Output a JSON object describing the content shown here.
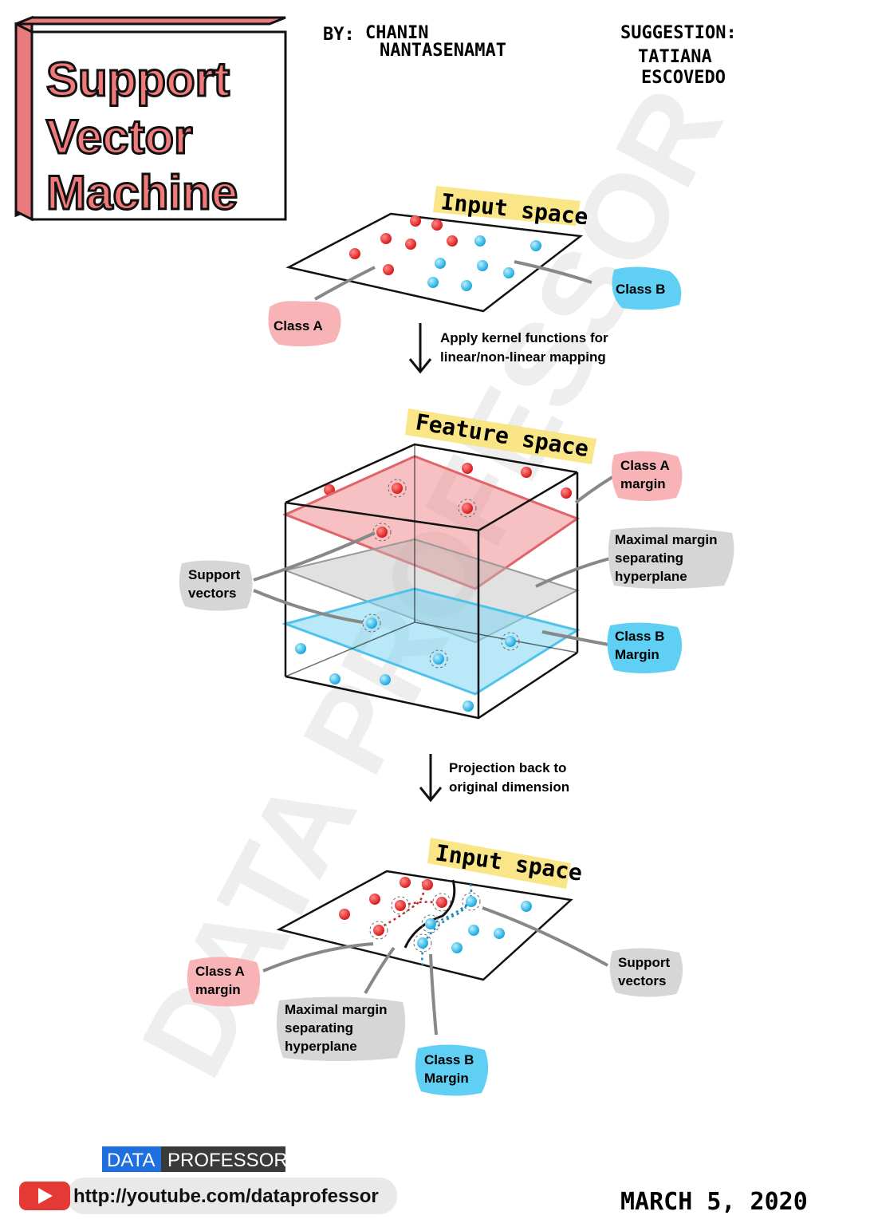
{
  "title": {
    "line1": "Support",
    "line2": "Vector",
    "line3": "Machine"
  },
  "byline": {
    "prefix": "BY:",
    "name1": "CHANIN",
    "name2": "NANTASENAMAT"
  },
  "suggestion": {
    "label": "SUGGESTION:",
    "name1": "TATIANA",
    "name2": "ESCOVEDO"
  },
  "panel1": {
    "title": "Input space",
    "class_a": "Class A",
    "class_b": "Class B"
  },
  "arrow1": {
    "line1": "Apply kernel functions for",
    "line2": "linear/non-linear mapping"
  },
  "panel2": {
    "title": "Feature space",
    "class_a_margin": [
      "Class A",
      "margin"
    ],
    "hyperplane": [
      "Maximal margin",
      "separating",
      "hyperplane"
    ],
    "support_vectors": [
      "Support",
      "vectors"
    ],
    "class_b_margin": [
      "Class B",
      "Margin"
    ]
  },
  "arrow2": {
    "line1": "Projection back to",
    "line2": "original dimension"
  },
  "panel3": {
    "title": "Input space",
    "class_a_margin": [
      "Class A",
      "margin"
    ],
    "hyperplane": [
      "Maximal margin",
      "separating",
      "hyperplane"
    ],
    "class_b_margin": [
      "Class B",
      "Margin"
    ],
    "support_vectors": [
      "Support",
      "vectors"
    ]
  },
  "watermark": "DATA PROFESSOR",
  "footer": {
    "logo_data": "DATA",
    "logo_professor": "PROFESSOR",
    "url": "http://youtube.com/dataprofessor",
    "date": "MARCH 5, 2020"
  },
  "colors": {
    "class_a": "#e53935",
    "class_b": "#29b6e8",
    "title_fill": "#f07a7a",
    "highlight": "#f9e27a",
    "tag_red": "#f7b3b6",
    "tag_blue": "#5fd0f3",
    "tag_gray": "#d6d6d6",
    "youtube": "#e53935",
    "logo_blue": "#1e6fe0"
  }
}
